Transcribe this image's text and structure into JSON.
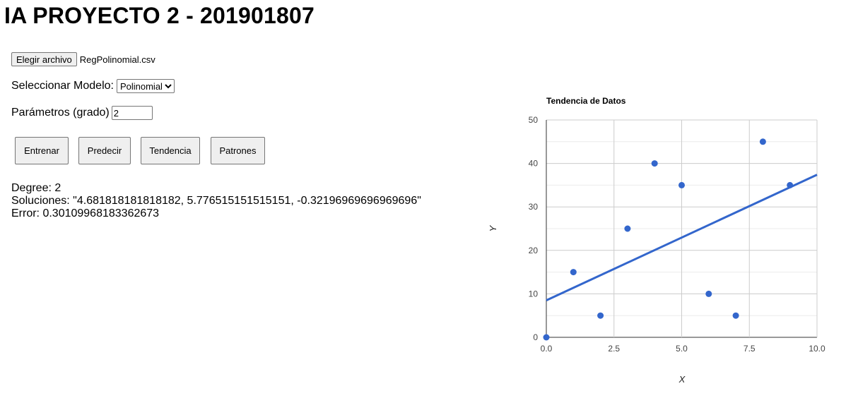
{
  "page_title": "IA PROYECTO 2 - 201901807",
  "file_input": {
    "button_label": "Elegir archivo",
    "file_name": "RegPolinomial.csv"
  },
  "model": {
    "label": "Seleccionar Modelo:",
    "selected": "Polinomial"
  },
  "params": {
    "label": "Parámetros (grado)",
    "value": "2"
  },
  "buttons": {
    "train": "Entrenar",
    "predict": "Predecir",
    "trend": "Tendencia",
    "patterns": "Patrones"
  },
  "results": {
    "degree": "Degree: 2",
    "solutions": "Soluciones: \"4.681818181818182, 5.776515151515151, -0.32196969696969696\"",
    "error": "Error: 0.30109968183362673"
  },
  "chart_data": {
    "type": "scatter",
    "title": "Tendencia de Datos",
    "xlabel": "X",
    "ylabel": "Y",
    "xlim": [
      0,
      10
    ],
    "ylim": [
      0,
      50
    ],
    "x_ticks": [
      "0.0",
      "2.5",
      "5.0",
      "7.5",
      "10.0"
    ],
    "y_ticks": [
      "0",
      "10",
      "20",
      "30",
      "40",
      "50"
    ],
    "grid": true,
    "point_color": "#3366cc",
    "points": [
      {
        "x": 0,
        "y": 0
      },
      {
        "x": 1,
        "y": 15
      },
      {
        "x": 2,
        "y": 5
      },
      {
        "x": 3,
        "y": 25
      },
      {
        "x": 4,
        "y": 40
      },
      {
        "x": 5,
        "y": 35
      },
      {
        "x": 6,
        "y": 10
      },
      {
        "x": 7,
        "y": 5
      },
      {
        "x": 8,
        "y": 45
      },
      {
        "x": 9,
        "y": 35
      }
    ],
    "trendline": {
      "color": "#3366cc",
      "points": [
        {
          "x": 0,
          "y": 8.5
        },
        {
          "x": 10,
          "y": 37.4
        }
      ]
    }
  }
}
